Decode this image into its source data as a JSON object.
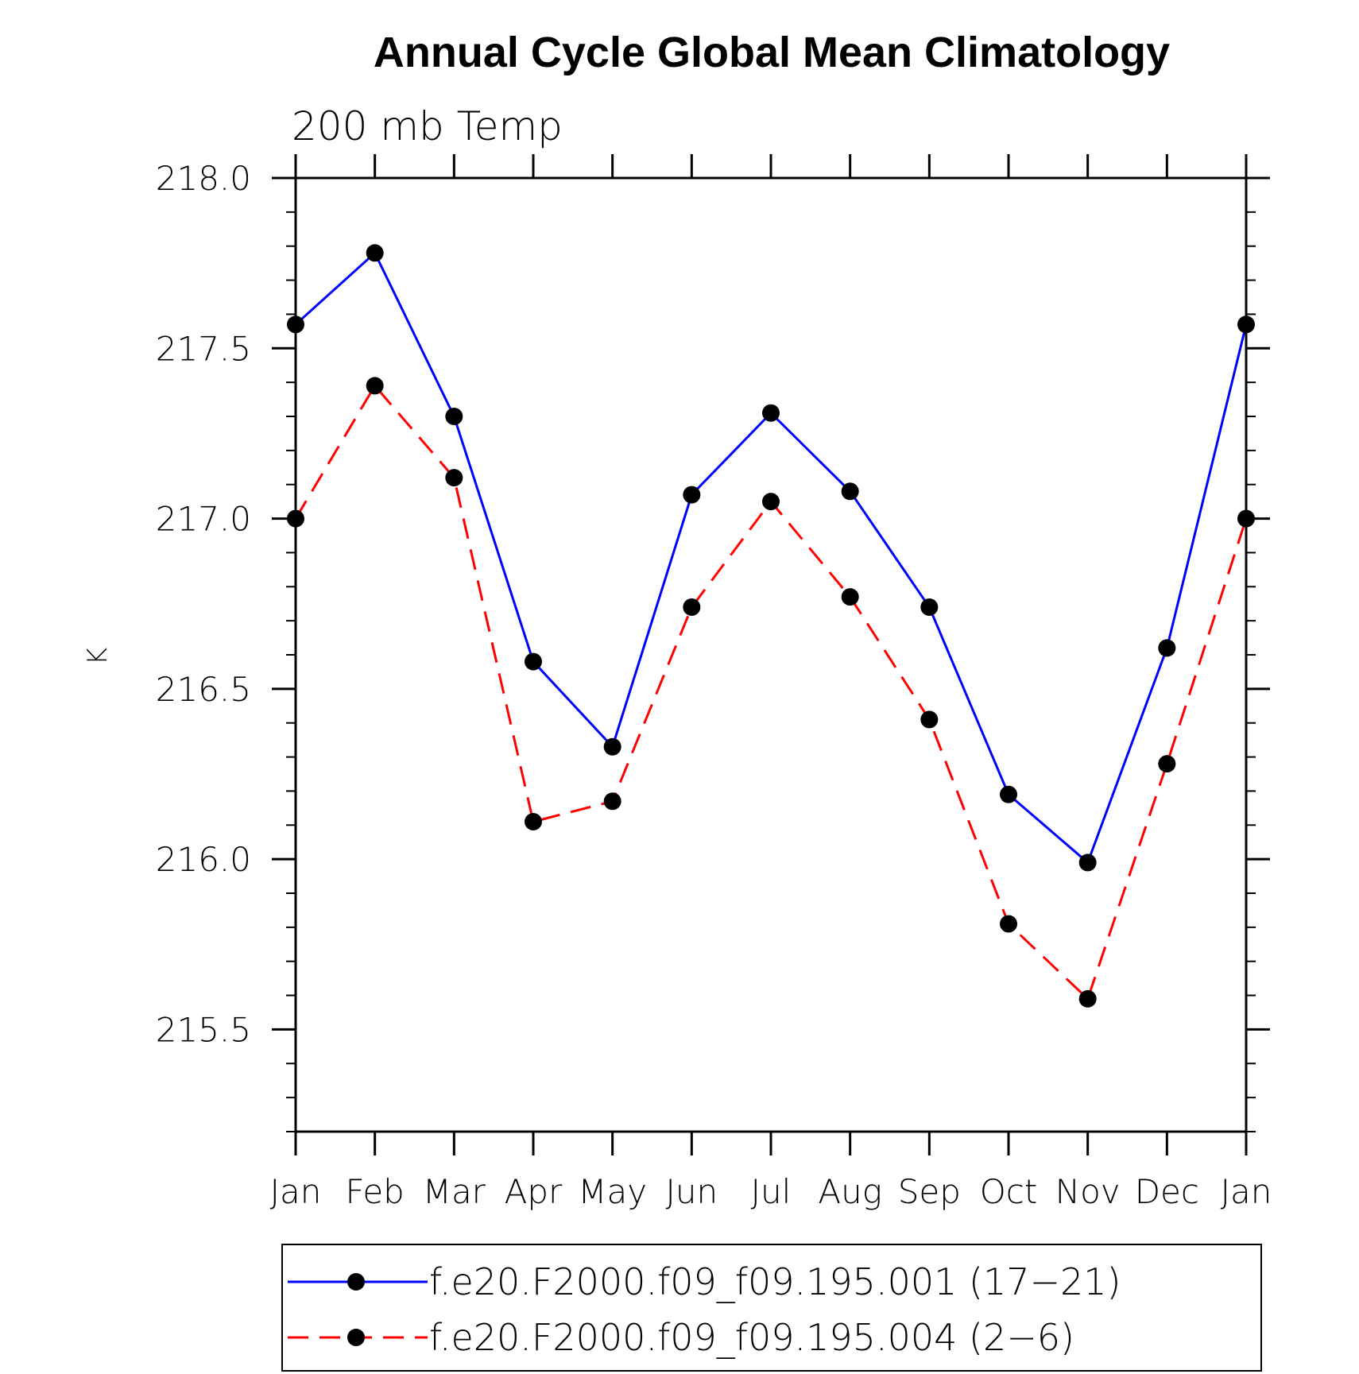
{
  "chart_data": {
    "type": "line",
    "title": "Annual Cycle Global Mean Climatology",
    "subtitle": "200 mb Temp",
    "xlabel": "",
    "ylabel": "K",
    "categories": [
      "Jan",
      "Feb",
      "Mar",
      "Apr",
      "May",
      "Jun",
      "Jul",
      "Aug",
      "Sep",
      "Oct",
      "Nov",
      "Dec",
      "Jan"
    ],
    "ylim": [
      215.2,
      218.0
    ],
    "yticks": [
      215.5,
      216.0,
      216.5,
      217.0,
      217.5,
      218.0
    ],
    "ytick_labels": [
      "215.5",
      "216.0",
      "216.5",
      "217.0",
      "217.5",
      "218.0"
    ],
    "y_minor_step": 0.1,
    "grid": false,
    "legend_position": "bottom",
    "series": [
      {
        "name": "f.e20.F2000.f09_f09.195.001 (17−21)",
        "color": "#0000ff",
        "line_style": "solid",
        "marker": "filled-circle",
        "values": [
          217.57,
          217.78,
          217.3,
          216.58,
          216.33,
          217.07,
          217.31,
          217.08,
          216.74,
          216.19,
          215.99,
          216.62,
          217.57
        ]
      },
      {
        "name": "f.e20.F2000.f09_f09.195.004 (2−6)",
        "color": "#ff0000",
        "line_style": "dashed",
        "marker": "filled-circle",
        "values": [
          217.0,
          217.39,
          217.12,
          216.11,
          216.17,
          216.74,
          217.05,
          216.77,
          216.41,
          215.81,
          215.59,
          216.28,
          217.0
        ]
      }
    ]
  }
}
